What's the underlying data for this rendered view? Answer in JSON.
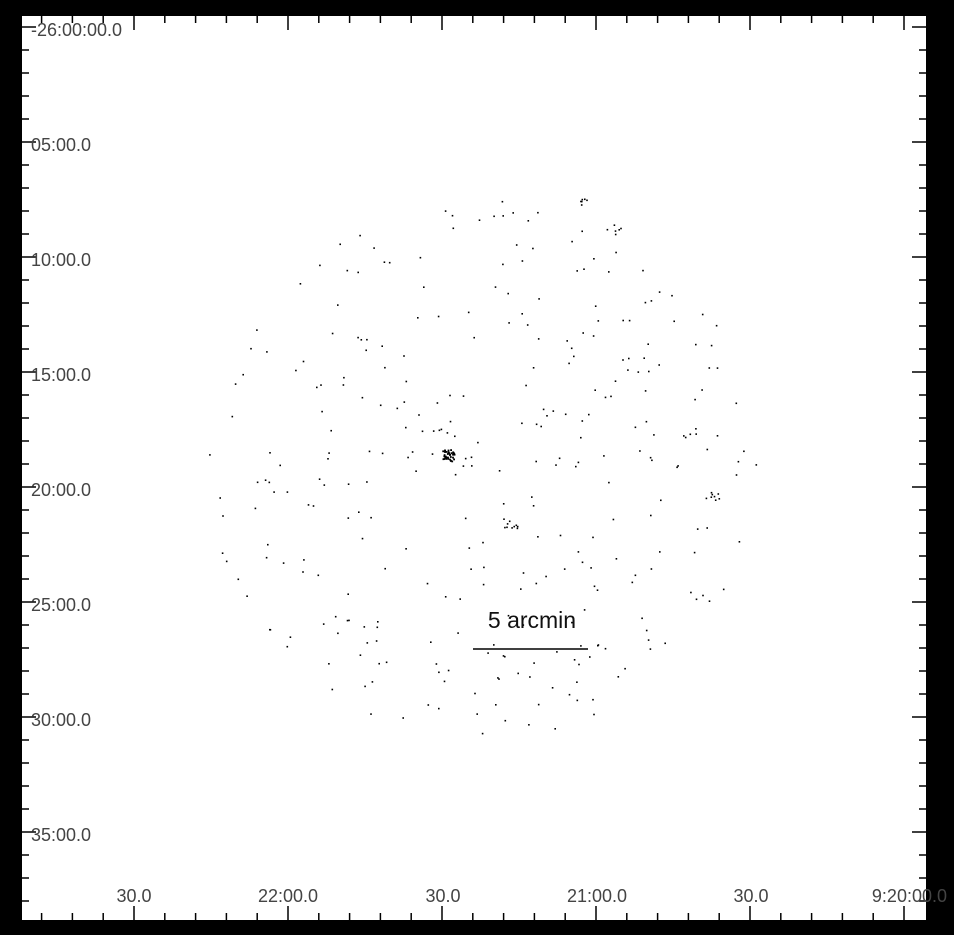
{
  "image": {
    "kind": "sky-map",
    "background": "#ffffff",
    "border_color": "#000000",
    "source_color": "#000000",
    "label_color": "#444444"
  },
  "dec_labels": [
    "-26:00:00.0",
    "05:00.0",
    "10:00.0",
    "15:00.0",
    "20:00.0",
    "25:00.0",
    "30:00.0",
    "35:00.0"
  ],
  "ra_labels": [
    "30.0",
    "22:00.0",
    "30.0",
    "21:00.0",
    "30.0",
    "9:20:00.0"
  ],
  "scale_bar": {
    "label": "5 arcmin"
  }
}
